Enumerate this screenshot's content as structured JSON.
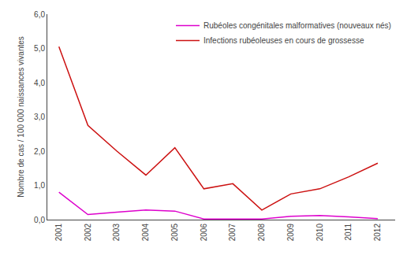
{
  "chart_data": {
    "type": "line",
    "x": [
      2001,
      2002,
      2003,
      2004,
      2005,
      2006,
      2007,
      2008,
      2009,
      2010,
      2011,
      2012
    ],
    "series": [
      {
        "name": "Infections rubéoleuses en cours de grossesse",
        "color": "#cc1111",
        "values": [
          5.05,
          2.75,
          2.0,
          1.3,
          2.1,
          0.9,
          1.05,
          0.28,
          0.75,
          0.9,
          1.25,
          1.65
        ]
      },
      {
        "name": "Rubéoles congénitales malformatives (nouveaux nés)",
        "color": "#dd00cc",
        "values": [
          0.8,
          0.15,
          0.22,
          0.28,
          0.25,
          0.02,
          0.02,
          0.02,
          0.1,
          0.12,
          0.08,
          0.03
        ]
      }
    ],
    "ylabel": "Nombre de cas / 100 000 naissances vivantes",
    "xlim": [
      2000.6,
      2012.6
    ],
    "xticks": [
      2001,
      2002,
      2003,
      2004,
      2005,
      2006,
      2007,
      2008,
      2009,
      2010,
      2011,
      2012
    ],
    "ylim": [
      0.0,
      6.0
    ],
    "yticks": [
      {
        "value": 0.0,
        "label": "0,0"
      },
      {
        "value": 1.0,
        "label": "1,0"
      },
      {
        "value": 2.0,
        "label": "2,0"
      },
      {
        "value": 3.0,
        "label": "3,0"
      },
      {
        "value": 4.0,
        "label": "4,0"
      },
      {
        "value": 5.0,
        "label": "5,0"
      },
      {
        "value": 6.0,
        "label": "6,0"
      }
    ],
    "grid": false,
    "legend": "upper right"
  }
}
